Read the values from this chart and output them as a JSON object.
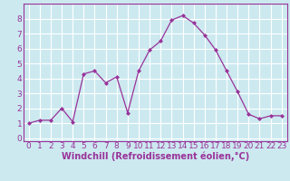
{
  "x": [
    0,
    1,
    2,
    3,
    4,
    5,
    6,
    7,
    8,
    9,
    10,
    11,
    12,
    13,
    14,
    15,
    16,
    17,
    18,
    19,
    20,
    21,
    22,
    23
  ],
  "y": [
    1.0,
    1.2,
    1.2,
    2.0,
    1.1,
    4.3,
    4.5,
    3.7,
    4.1,
    1.7,
    4.5,
    5.9,
    6.5,
    7.9,
    8.2,
    7.7,
    6.9,
    5.9,
    4.5,
    3.1,
    1.6,
    1.3,
    1.5,
    1.5
  ],
  "line_color": "#993399",
  "marker": "D",
  "marker_size": 2.0,
  "bg_color": "#cce9f0",
  "grid_color": "#ffffff",
  "xlabel": "Windchill (Refroidissement éolien,°C)",
  "xlabel_color": "#993399",
  "tick_color": "#993399",
  "spine_color": "#993399",
  "xlim": [
    -0.5,
    23.5
  ],
  "ylim": [
    -0.2,
    9.0
  ],
  "xticks": [
    0,
    1,
    2,
    3,
    4,
    5,
    6,
    7,
    8,
    9,
    10,
    11,
    12,
    13,
    14,
    15,
    16,
    17,
    18,
    19,
    20,
    21,
    22,
    23
  ],
  "yticks": [
    0,
    1,
    2,
    3,
    4,
    5,
    6,
    7,
    8
  ],
  "font_size": 6.5,
  "xlabel_fontsize": 7.0,
  "line_width": 0.9
}
